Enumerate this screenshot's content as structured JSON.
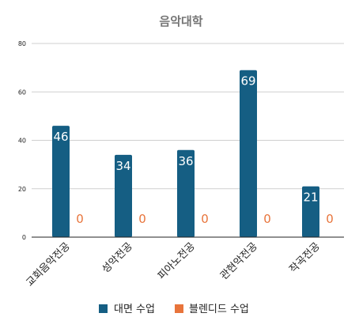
{
  "chart_data": {
    "type": "bar",
    "title": "음악대학",
    "categories": [
      "교회음악전공",
      "성악전공",
      "피아노전공",
      "관현악전공",
      "작곡전공"
    ],
    "series": [
      {
        "name": "대면 수업",
        "values": [
          46,
          34,
          36,
          69,
          21
        ],
        "color": "#155e83"
      },
      {
        "name": "블렌디드 수업",
        "values": [
          0,
          0,
          0,
          0,
          0
        ],
        "color": "#e8743b"
      }
    ],
    "ylim": [
      0,
      80
    ],
    "yticks": [
      0,
      20,
      40,
      60,
      80
    ],
    "grid": true,
    "legend_position": "bottom"
  }
}
